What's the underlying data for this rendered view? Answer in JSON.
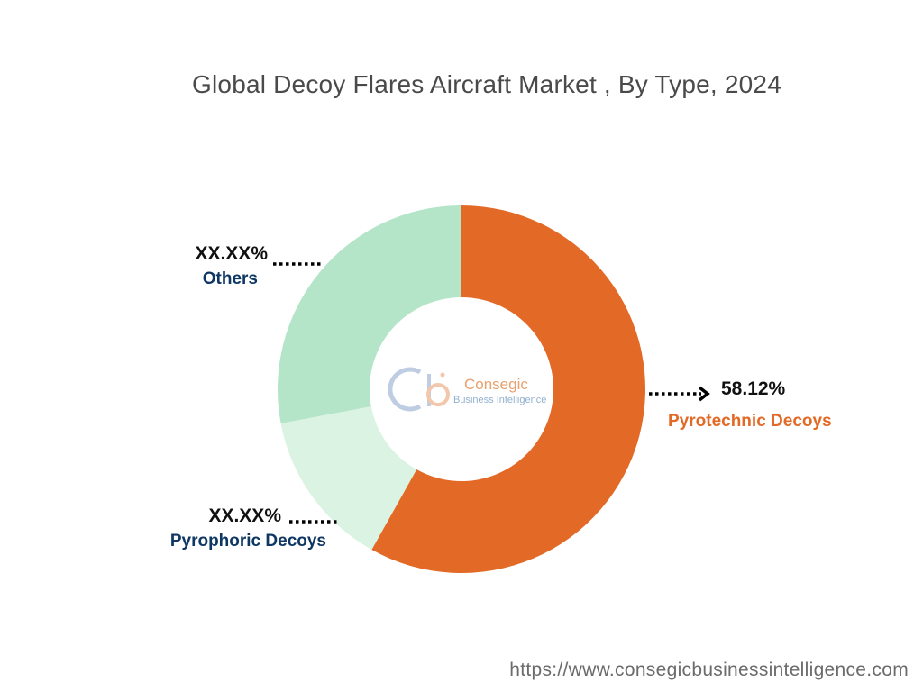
{
  "title": "Global Decoy Flares Aircraft Market , By Type, 2024",
  "footer_url": "https://www.consegicbusinessintelligence.com",
  "logo": {
    "name": "Consegic",
    "tagline": "Business Intelligence"
  },
  "colors": {
    "pyrotechnic": "#E36A26",
    "pyrophoric": "#DAF3E2",
    "others": "#B5E5C9",
    "dark_label": "#0F3763",
    "value_text": "#111111"
  },
  "chart_data": {
    "type": "pie",
    "variant": "donut",
    "title": "Global Decoy Flares Aircraft Market , By Type, 2024",
    "slices": [
      {
        "label": "Pyrotechnic Decoys",
        "display_value": "58.12%",
        "value": 58.12,
        "color": "#E36A26",
        "label_color": "#E36A26"
      },
      {
        "label": "Pyrophoric Decoys",
        "display_value": "XX.XX%",
        "value": 13.9,
        "color": "#DAF3E2",
        "label_color": "#0F3763"
      },
      {
        "label": "Others",
        "display_value": "XX.XX%",
        "value": 27.98,
        "color": "#B5E5C9",
        "label_color": "#0F3763"
      }
    ],
    "start": "12 o'clock",
    "direction": "clockwise",
    "legend": "none"
  }
}
